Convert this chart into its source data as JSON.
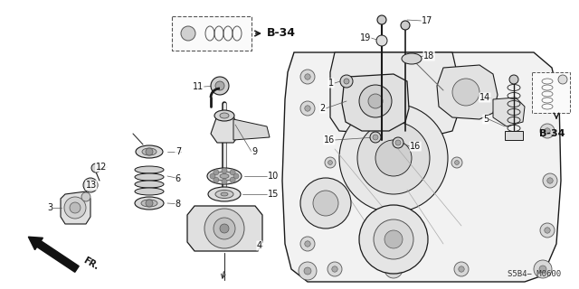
{
  "bg_color": "#ffffff",
  "line_color": "#1a1a1a",
  "part_number": "S5B4− M0600",
  "b34_label": "B-34",
  "fr_label": "FR.",
  "figsize": [
    6.4,
    3.2
  ],
  "dpi": 100
}
